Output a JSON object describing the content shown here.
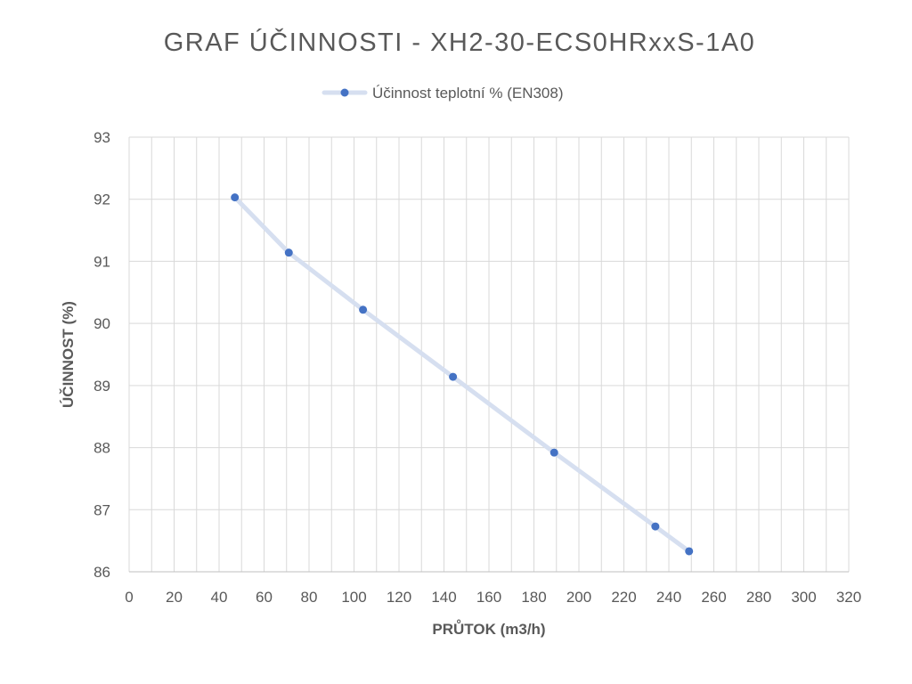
{
  "chart_data": {
    "type": "line",
    "title": "GRAF ÚČINNOSTI - XH2-30-ECS0HRxxS-1A0",
    "xlabel": "PRŮTOK (m3/h)",
    "ylabel": "ÚČINNOST (%)",
    "xlim": [
      0,
      320
    ],
    "ylim": [
      86,
      93
    ],
    "x_major_step": 20,
    "x_minor_step": 10,
    "y_step": 1,
    "x_ticks": [
      "0",
      "20",
      "40",
      "60",
      "80",
      "100",
      "120",
      "140",
      "160",
      "180",
      "200",
      "220",
      "240",
      "260",
      "280",
      "300",
      "320"
    ],
    "y_ticks": [
      "86",
      "87",
      "88",
      "89",
      "90",
      "91",
      "92",
      "93"
    ],
    "grid": true,
    "legend_position": "top",
    "series": [
      {
        "name": "Účinnost teplotní % (EN308)",
        "line_color": "#d6dff0",
        "marker_color": "#4472c4",
        "points": [
          {
            "x": 47,
            "y": 92.03
          },
          {
            "x": 71,
            "y": 91.14
          },
          {
            "x": 104,
            "y": 90.22
          },
          {
            "x": 144,
            "y": 89.14
          },
          {
            "x": 189,
            "y": 87.92
          },
          {
            "x": 234,
            "y": 86.73
          },
          {
            "x": 249,
            "y": 86.33
          }
        ]
      }
    ]
  }
}
